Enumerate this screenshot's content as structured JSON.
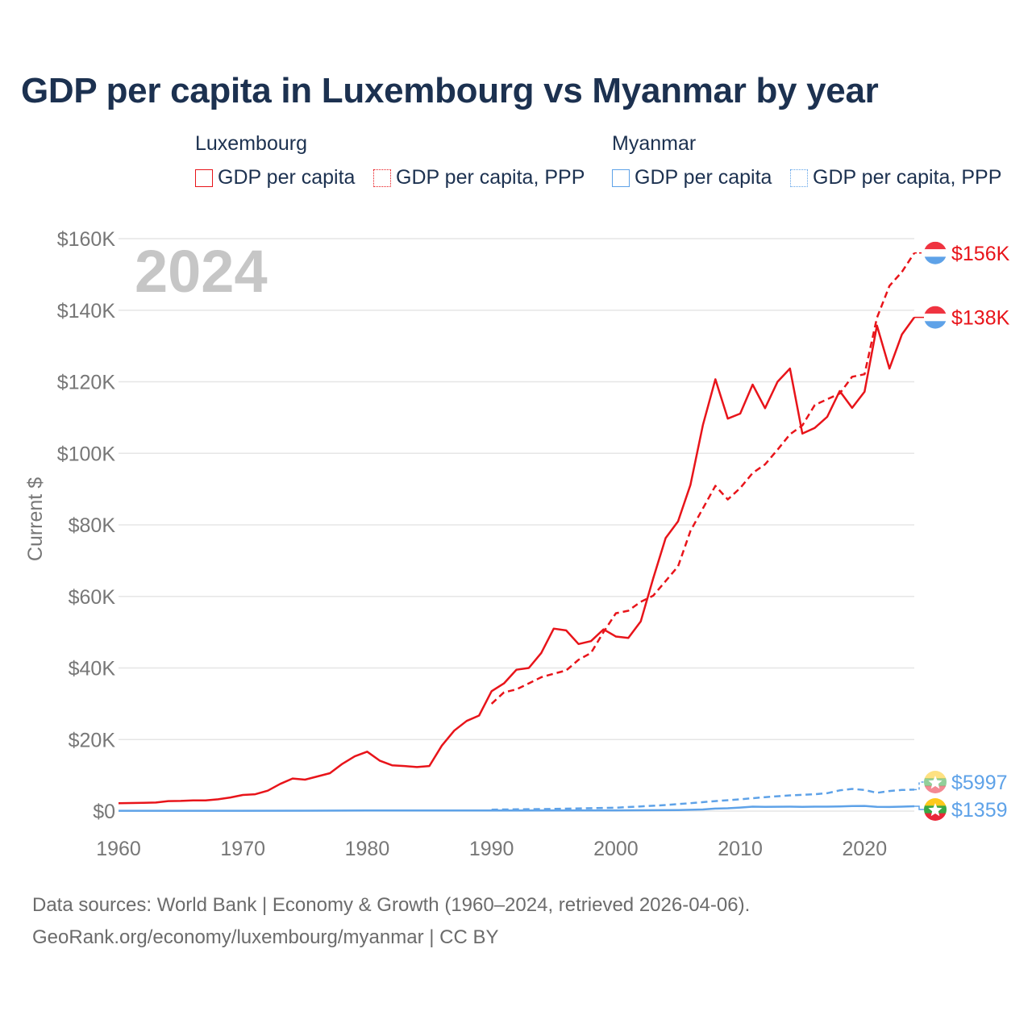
{
  "title": "GDP per capita in Luxembourg vs Myanmar by year",
  "legend": {
    "groups": [
      {
        "name": "Luxembourg",
        "items": [
          "GDP per capita",
          "GDP per capita, PPP"
        ],
        "color": "#e8141a"
      },
      {
        "name": "Myanmar",
        "items": [
          "GDP per capita",
          "GDP per capita, PPP"
        ],
        "color": "#5ea2e8"
      }
    ]
  },
  "year_label": "2024",
  "footer": {
    "line1": "Data sources: World Bank | Economy & Growth (1960–2024, retrieved 2026-04-06).",
    "line2": "GeoRank.org/economy/luxembourg/myanmar | CC BY"
  },
  "chart_data": {
    "type": "line",
    "ylabel": "Current $",
    "xlabel": "",
    "xlim": [
      1960,
      2024
    ],
    "ylim": [
      0,
      160000
    ],
    "x_ticks": [
      1960,
      1970,
      1980,
      1990,
      2000,
      2010,
      2020
    ],
    "x_tick_labels": [
      "1960",
      "1970",
      "1980",
      "1990",
      "2000",
      "2010",
      "2020"
    ],
    "y_ticks": [
      0,
      20000,
      40000,
      60000,
      80000,
      100000,
      120000,
      140000,
      160000
    ],
    "y_tick_labels": [
      "$0",
      "$20K",
      "$40K",
      "$60K",
      "$80K",
      "$100K",
      "$120K",
      "$140K",
      "$160K"
    ],
    "grid": true,
    "series": [
      {
        "name": "Luxembourg GDP per capita",
        "color": "#e8141a",
        "dash": false,
        "end_label": "$138K",
        "points": [
          [
            1960,
            2200
          ],
          [
            1961,
            2250
          ],
          [
            1962,
            2300
          ],
          [
            1963,
            2400
          ],
          [
            1964,
            2800
          ],
          [
            1965,
            2850
          ],
          [
            1966,
            3000
          ],
          [
            1967,
            3000
          ],
          [
            1968,
            3300
          ],
          [
            1969,
            3800
          ],
          [
            1970,
            4500
          ],
          [
            1971,
            4700
          ],
          [
            1972,
            5700
          ],
          [
            1973,
            7600
          ],
          [
            1974,
            9100
          ],
          [
            1975,
            8800
          ],
          [
            1976,
            9700
          ],
          [
            1977,
            10600
          ],
          [
            1978,
            13200
          ],
          [
            1979,
            15300
          ],
          [
            1980,
            16600
          ],
          [
            1981,
            14100
          ],
          [
            1982,
            12800
          ],
          [
            1983,
            12600
          ],
          [
            1984,
            12300
          ],
          [
            1985,
            12600
          ],
          [
            1986,
            18300
          ],
          [
            1987,
            22500
          ],
          [
            1988,
            25200
          ],
          [
            1989,
            26700
          ],
          [
            1990,
            33500
          ],
          [
            1991,
            35700
          ],
          [
            1992,
            39500
          ],
          [
            1993,
            40000
          ],
          [
            1994,
            44200
          ],
          [
            1995,
            51000
          ],
          [
            1996,
            50500
          ],
          [
            1997,
            46700
          ],
          [
            1998,
            47500
          ],
          [
            1999,
            50800
          ],
          [
            2000,
            48800
          ],
          [
            2001,
            48400
          ],
          [
            2002,
            53000
          ],
          [
            2003,
            65000
          ],
          [
            2004,
            76300
          ],
          [
            2005,
            81000
          ],
          [
            2006,
            91200
          ],
          [
            2007,
            107900
          ],
          [
            2008,
            120700
          ],
          [
            2009,
            109700
          ],
          [
            2010,
            111100
          ],
          [
            2011,
            119200
          ],
          [
            2012,
            112600
          ],
          [
            2013,
            120000
          ],
          [
            2014,
            123700
          ],
          [
            2015,
            105500
          ],
          [
            2016,
            107100
          ],
          [
            2017,
            110200
          ],
          [
            2018,
            117400
          ],
          [
            2019,
            112700
          ],
          [
            2020,
            117200
          ],
          [
            2021,
            135700
          ],
          [
            2022,
            123700
          ],
          [
            2023,
            133200
          ],
          [
            2024,
            138000
          ]
        ]
      },
      {
        "name": "Luxembourg GDP per capita, PPP",
        "color": "#e8141a",
        "dash": true,
        "end_label": "$156K",
        "points": [
          [
            1990,
            30000
          ],
          [
            1991,
            33200
          ],
          [
            1992,
            34000
          ],
          [
            1993,
            35700
          ],
          [
            1994,
            37400
          ],
          [
            1995,
            38400
          ],
          [
            1996,
            39300
          ],
          [
            1997,
            42300
          ],
          [
            1998,
            44200
          ],
          [
            1999,
            50000
          ],
          [
            2000,
            55300
          ],
          [
            2001,
            56000
          ],
          [
            2002,
            58500
          ],
          [
            2003,
            60200
          ],
          [
            2004,
            64300
          ],
          [
            2005,
            68400
          ],
          [
            2006,
            78300
          ],
          [
            2007,
            84600
          ],
          [
            2008,
            90900
          ],
          [
            2009,
            87100
          ],
          [
            2010,
            90300
          ],
          [
            2011,
            94500
          ],
          [
            2012,
            96900
          ],
          [
            2013,
            101000
          ],
          [
            2014,
            105300
          ],
          [
            2015,
            107800
          ],
          [
            2016,
            113500
          ],
          [
            2017,
            115100
          ],
          [
            2018,
            116700
          ],
          [
            2019,
            121400
          ],
          [
            2020,
            122100
          ],
          [
            2021,
            137900
          ],
          [
            2022,
            146800
          ],
          [
            2023,
            150700
          ],
          [
            2024,
            156000
          ]
        ]
      },
      {
        "name": "Myanmar GDP per capita",
        "color": "#5ea2e8",
        "dash": false,
        "end_label": "$1359",
        "points": [
          [
            1960,
            100
          ],
          [
            1970,
            100
          ],
          [
            1980,
            150
          ],
          [
            1990,
            150
          ],
          [
            2000,
            200
          ],
          [
            2005,
            300
          ],
          [
            2007,
            450
          ],
          [
            2008,
            700
          ],
          [
            2009,
            800
          ],
          [
            2010,
            1000
          ],
          [
            2011,
            1250
          ],
          [
            2012,
            1200
          ],
          [
            2013,
            1220
          ],
          [
            2014,
            1250
          ],
          [
            2015,
            1200
          ],
          [
            2016,
            1230
          ],
          [
            2017,
            1250
          ],
          [
            2018,
            1300
          ],
          [
            2019,
            1400
          ],
          [
            2020,
            1450
          ],
          [
            2021,
            1200
          ],
          [
            2022,
            1150
          ],
          [
            2023,
            1250
          ],
          [
            2024,
            1359
          ]
        ]
      },
      {
        "name": "Myanmar GDP per capita, PPP",
        "color": "#5ea2e8",
        "dash": true,
        "end_label": "$5997",
        "points": [
          [
            1990,
            400
          ],
          [
            1995,
            600
          ],
          [
            2000,
            950
          ],
          [
            2002,
            1300
          ],
          [
            2004,
            1700
          ],
          [
            2006,
            2200
          ],
          [
            2008,
            2800
          ],
          [
            2010,
            3300
          ],
          [
            2012,
            3900
          ],
          [
            2014,
            4400
          ],
          [
            2016,
            4700
          ],
          [
            2017,
            5000
          ],
          [
            2018,
            5800
          ],
          [
            2019,
            6200
          ],
          [
            2020,
            5900
          ],
          [
            2021,
            5100
          ],
          [
            2022,
            5600
          ],
          [
            2023,
            5900
          ],
          [
            2024,
            5997
          ]
        ]
      }
    ]
  }
}
